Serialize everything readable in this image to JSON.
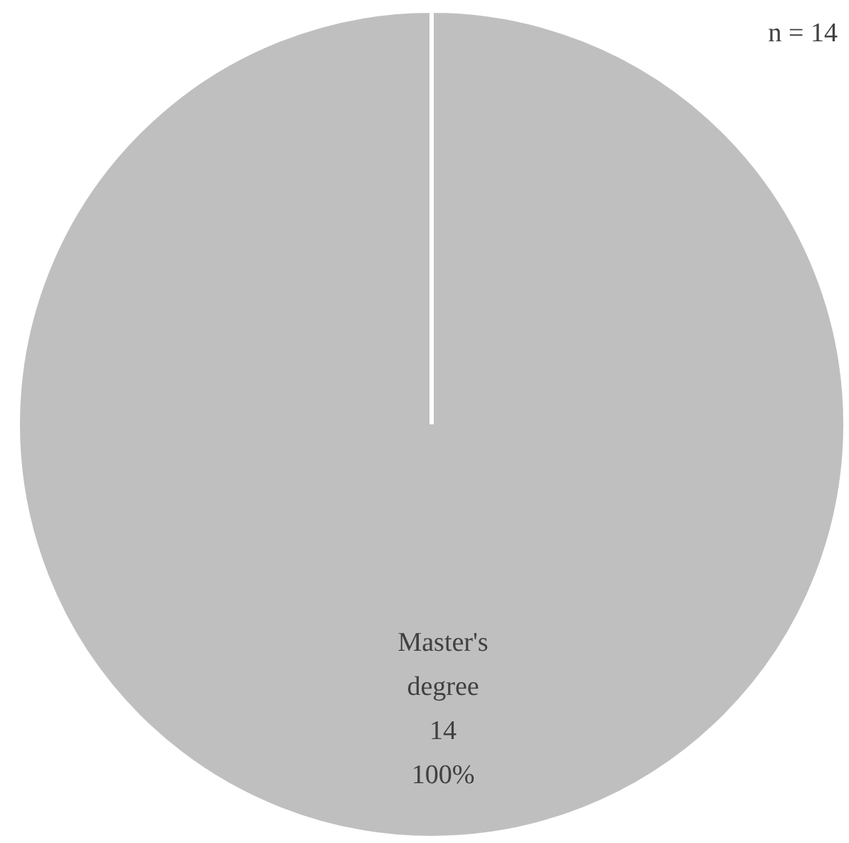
{
  "chart_data": {
    "type": "pie",
    "categories": [
      "Master's degree"
    ],
    "values": [
      14
    ],
    "colors": [
      "#bfbfbf"
    ],
    "data_labels": true,
    "annotations": [
      "n = 14",
      {
        "text": "100%",
        "x": "Master's degree"
      }
    ],
    "legend": false
  }
}
